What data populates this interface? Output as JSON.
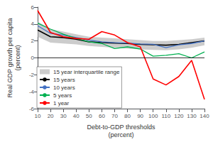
{
  "chart_data": {
    "type": "line",
    "xlabel": "Debt-to-GDP thresholds\n(percent)",
    "ylabel": "Real GDP growth per capita\n(percent)",
    "x": [
      10,
      20,
      30,
      40,
      50,
      60,
      70,
      80,
      90,
      100,
      110,
      120,
      130,
      140
    ],
    "series": [
      {
        "name": "15 year interquartile range",
        "type": "area",
        "color": "#aaaaaa",
        "lower": [
          2.5,
          1.8,
          1.7,
          1.6,
          1.4,
          1.3,
          1.2,
          1.1,
          1.0,
          0.95,
          0.9,
          1.0,
          1.2,
          1.5
        ],
        "upper": [
          4.3,
          3.4,
          3.1,
          2.8,
          2.5,
          2.4,
          2.3,
          2.2,
          2.1,
          2.0,
          2.0,
          2.1,
          2.2,
          2.4
        ]
      },
      {
        "name": "15 years",
        "type": "line",
        "color": "#000000",
        "values": [
          3.3,
          2.5,
          2.4,
          2.2,
          1.9,
          1.8,
          1.75,
          1.7,
          1.6,
          1.55,
          1.5,
          1.6,
          1.8,
          2.0
        ]
      },
      {
        "name": "10 years",
        "type": "line",
        "color": "#4472c4",
        "values": [
          3.8,
          2.9,
          2.7,
          2.4,
          2.1,
          1.9,
          1.8,
          1.75,
          1.65,
          1.6,
          1.2,
          1.55,
          1.7,
          2.0
        ]
      },
      {
        "name": "5 years",
        "type": "line",
        "color": "#00b050",
        "values": [
          4.1,
          3.4,
          2.8,
          2.3,
          1.9,
          1.7,
          1.1,
          1.3,
          1.05,
          0.2,
          0.3,
          0.5,
          0.0,
          0.7
        ]
      },
      {
        "name": "1 year",
        "type": "line",
        "color": "#ff0000",
        "values": [
          5.6,
          3.0,
          2.5,
          2.3,
          2.2,
          3.1,
          2.7,
          1.8,
          1.3,
          -2.5,
          -3.2,
          -2.2,
          -0.3,
          -4.9
        ]
      }
    ],
    "hlines": [
      0
    ],
    "xlim": [
      10,
      140
    ],
    "xticks": [
      10,
      20,
      30,
      40,
      50,
      60,
      70,
      80,
      90,
      100,
      110,
      120,
      130,
      140
    ],
    "ylim": [
      -6,
      6
    ],
    "yticks": [
      -6,
      -4,
      -2,
      0,
      2,
      4,
      6
    ],
    "grid": false,
    "legend": "lower left"
  }
}
